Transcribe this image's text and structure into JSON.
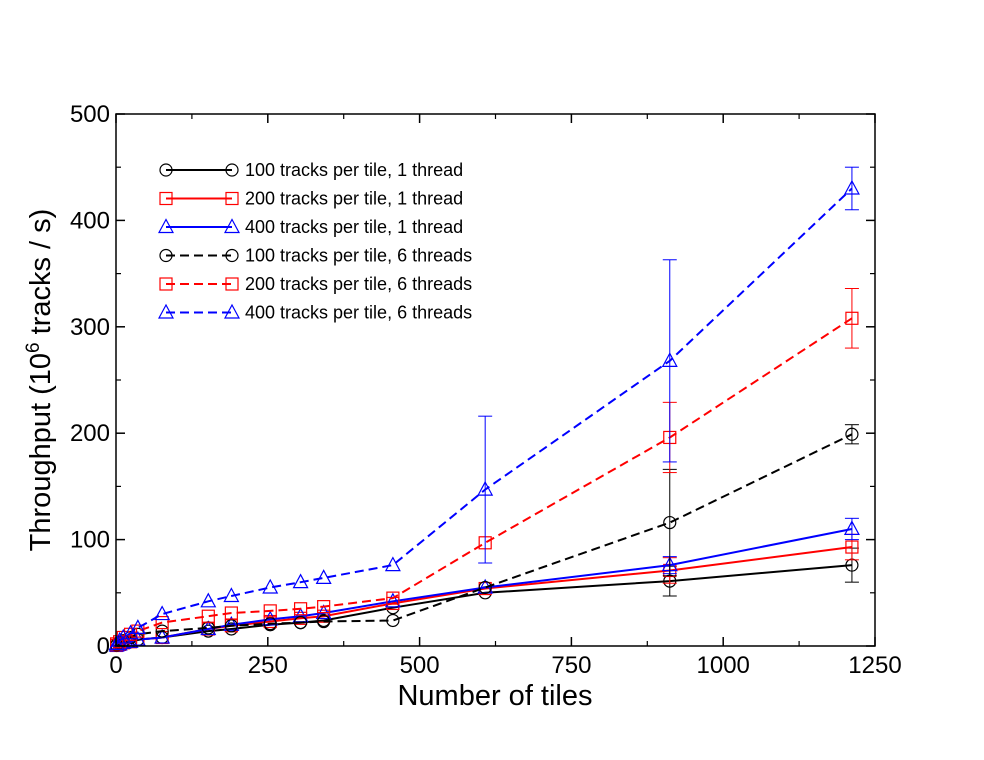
{
  "chart_data": {
    "type": "line",
    "title": "",
    "xlabel": "Number of tiles",
    "ylabel_text": "Throughput (",
    "ylabel_base": "10",
    "ylabel_exp": "6",
    "ylabel_tail": " tracks / s)",
    "xlim": [
      0,
      1250
    ],
    "ylim": [
      0,
      500
    ],
    "xticks": [
      0,
      250,
      500,
      750,
      1000,
      1250
    ],
    "xtick_labels": [
      "0",
      "250",
      "500",
      "750",
      "1000",
      "1250"
    ],
    "yticks": [
      0,
      100,
      200,
      300,
      400,
      500
    ],
    "ytick_labels": [
      "0",
      "100",
      "200",
      "300",
      "400",
      "500"
    ],
    "grid": false,
    "legend_position": "top-left",
    "series": [
      {
        "name": "100 tracks per tile, 1 thread",
        "color": "#000000",
        "dash": "solid",
        "marker": "circle",
        "x": [
          1,
          6,
          12,
          24,
          36,
          76,
          152,
          190,
          254,
          304,
          342,
          456,
          608,
          912,
          1212
        ],
        "y": [
          0.5,
          1.5,
          3,
          4,
          6,
          8,
          14,
          16,
          20,
          22,
          24,
          36,
          50,
          61,
          76
        ],
        "err": [
          0,
          0,
          0,
          0,
          0,
          0,
          0,
          0,
          0,
          0,
          0,
          0,
          0,
          14,
          16
        ]
      },
      {
        "name": "200 tracks per tile, 1 thread",
        "color": "#ff0000",
        "dash": "solid",
        "marker": "square",
        "x": [
          1,
          6,
          12,
          24,
          36,
          76,
          152,
          190,
          254,
          304,
          342,
          456,
          608,
          912,
          1212
        ],
        "y": [
          0.5,
          1.5,
          3,
          4,
          6,
          8,
          16,
          19,
          23,
          26,
          28,
          40,
          54,
          71,
          93
        ],
        "err": [
          0,
          0,
          0,
          0,
          0,
          0,
          0,
          0,
          0,
          0,
          0,
          0,
          0,
          12,
          12
        ]
      },
      {
        "name": "400 tracks per tile, 1 thread",
        "color": "#0000ff",
        "dash": "solid",
        "marker": "triangle",
        "x": [
          1,
          6,
          12,
          24,
          36,
          76,
          152,
          190,
          254,
          304,
          342,
          456,
          608,
          912,
          1212
        ],
        "y": [
          0.5,
          1.5,
          3,
          4,
          6,
          8,
          16,
          20,
          25,
          28,
          31,
          42,
          55,
          76,
          110
        ],
        "err": [
          0,
          0,
          0,
          0,
          0,
          0,
          0,
          0,
          0,
          0,
          0,
          0,
          0,
          8,
          10
        ]
      },
      {
        "name": "100 tracks per tile, 6 threads",
        "color": "#000000",
        "dash": "dashed",
        "marker": "circle",
        "x": [
          1,
          6,
          12,
          24,
          36,
          76,
          152,
          190,
          254,
          304,
          342,
          456,
          608,
          912,
          1212
        ],
        "y": [
          1,
          3,
          5,
          8,
          11,
          14,
          17,
          19,
          21,
          22,
          23,
          24,
          55,
          116,
          199
        ],
        "err": [
          0,
          0,
          0,
          0,
          0,
          0,
          0,
          0,
          0,
          0,
          0,
          0,
          0,
          50,
          9
        ]
      },
      {
        "name": "200 tracks per tile, 6 threads",
        "color": "#ff0000",
        "dash": "dashed",
        "marker": "square",
        "x": [
          1,
          6,
          12,
          24,
          36,
          76,
          152,
          190,
          254,
          304,
          342,
          456,
          608,
          912,
          1212
        ],
        "y": [
          2,
          4,
          8,
          11,
          14,
          22,
          28,
          31,
          33,
          35,
          37,
          45,
          97,
          196,
          308
        ],
        "err": [
          0,
          0,
          0,
          0,
          0,
          0,
          0,
          0,
          0,
          0,
          0,
          0,
          0,
          33,
          28
        ]
      },
      {
        "name": "400 tracks per tile, 6 threads",
        "color": "#0000ff",
        "dash": "dashed",
        "marker": "triangle",
        "x": [
          1,
          6,
          12,
          24,
          36,
          76,
          152,
          190,
          254,
          304,
          342,
          456,
          608,
          912,
          1212
        ],
        "y": [
          2,
          5,
          8,
          12,
          17,
          30,
          42,
          47,
          55,
          60,
          64,
          76,
          147,
          268,
          430
        ],
        "err": [
          0,
          0,
          0,
          0,
          0,
          0,
          0,
          0,
          0,
          0,
          0,
          0,
          69,
          95,
          20
        ]
      }
    ]
  }
}
